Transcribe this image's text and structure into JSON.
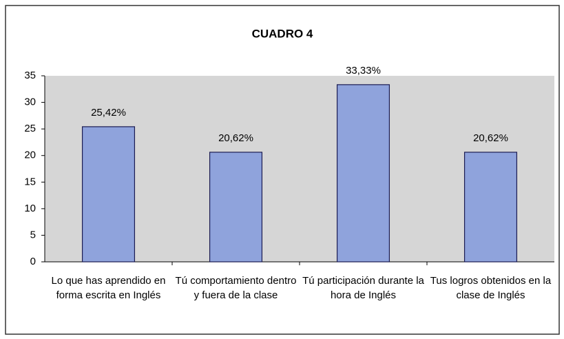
{
  "chart_data": {
    "type": "bar",
    "title": "CUADRO 4",
    "categories": [
      "Lo que has aprendido en forma escrita en Inglés",
      "Tú comportamiento dentro y fuera de la clase",
      "Tú participación durante la hora de Inglés",
      "Tus logros obtenidos en la clase de Inglés"
    ],
    "values": [
      25.42,
      20.62,
      33.33,
      20.62
    ],
    "value_labels": [
      "25,42%",
      "20,62%",
      "33,33%",
      "20,62%"
    ],
    "color": "#8fa3dc",
    "ylim": [
      0,
      35
    ],
    "yticks": [
      0,
      5,
      10,
      15,
      20,
      25,
      30,
      35
    ],
    "grid": false
  }
}
